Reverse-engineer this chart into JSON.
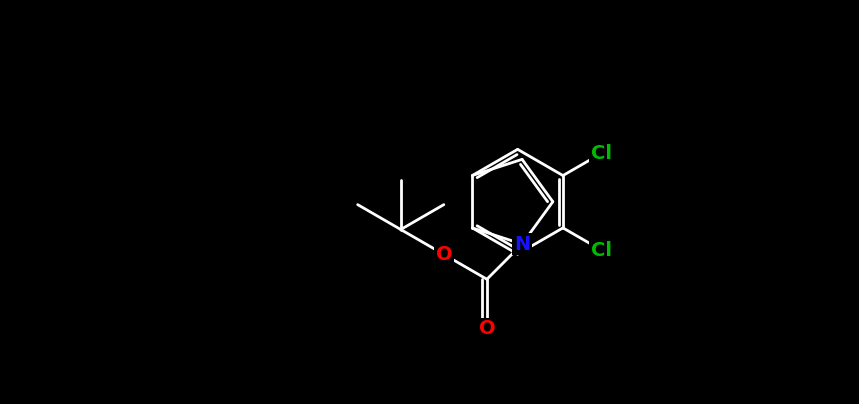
{
  "bg": "#000000",
  "bc": "#ffffff",
  "N_color": "#1414ff",
  "O_color": "#ff0000",
  "Cl_color": "#00bb00",
  "lw": 2.0,
  "fs": 14,
  "fig_w": 8.59,
  "fig_h": 4.04,
  "dpi": 100,
  "xlim": [
    0,
    8.59
  ],
  "ylim": [
    0,
    4.04
  ]
}
